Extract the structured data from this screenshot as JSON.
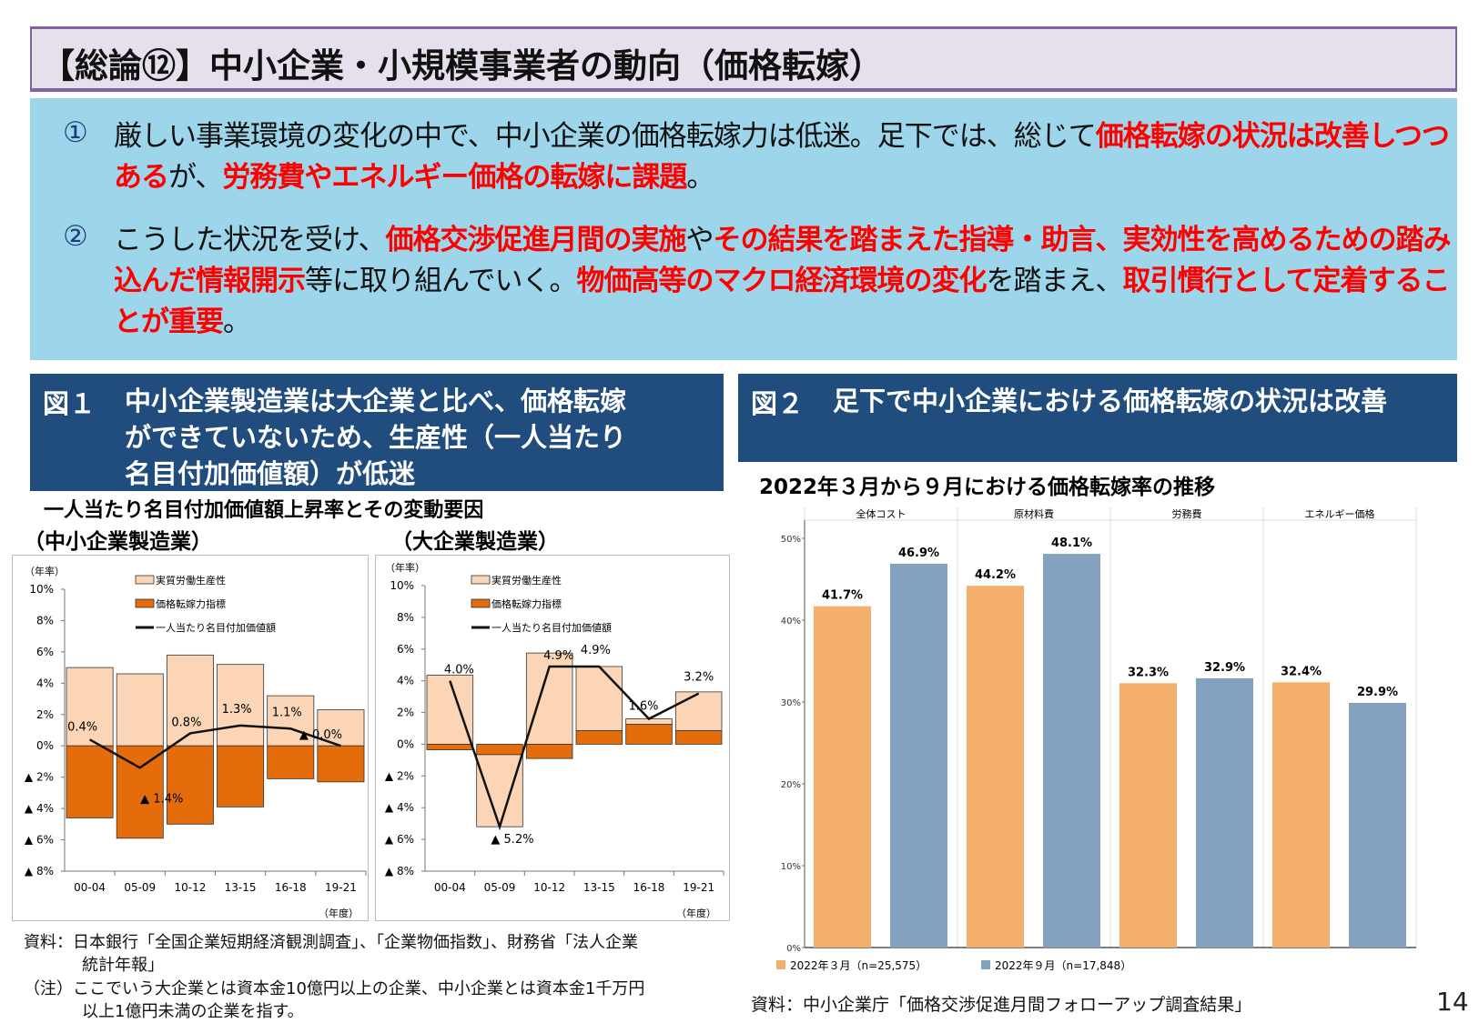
{
  "title": "【総論⑫】中小企業・小規模事業者の動向（価格転嫁）",
  "summary": {
    "items": [
      {
        "number": "①",
        "segments": [
          {
            "text": "厳しい事業環境の変化の中で、中小企業の価格転嫁力は低迷。足下では、総じて",
            "red": false
          },
          {
            "text": "価格転嫁の状況は改善しつつある",
            "red": true
          },
          {
            "text": "が、",
            "red": false
          },
          {
            "text": "労務費やエネルギー価格の転嫁に課題",
            "red": true
          },
          {
            "text": "。",
            "red": false
          }
        ]
      },
      {
        "number": "②",
        "segments": [
          {
            "text": "こうした状況を受け、",
            "red": false
          },
          {
            "text": "価格交渉促進月間の実施",
            "red": true
          },
          {
            "text": "や",
            "red": false
          },
          {
            "text": "その結果を踏まえた指導・助言、実効性を高めるための踏み込んだ情報開示",
            "red": true
          },
          {
            "text": "等に取り組んでいく。",
            "red": false
          },
          {
            "text": "物価高等のマクロ経済環境の変化",
            "red": true
          },
          {
            "text": "を踏まえ、",
            "red": false
          },
          {
            "text": "取引慣行として定着することが重要",
            "red": true
          },
          {
            "text": "。",
            "red": false
          }
        ]
      }
    ]
  },
  "figure1": {
    "label": "図１",
    "heading_lines": [
      "中小企業製造業は大企業と比べ、価格転嫁",
      "ができていないため、生産性（一人当たり",
      "名目付加価値額）が低迷"
    ],
    "subtitle": "一人当たり名目付加価値額上昇率とその変動要因",
    "panel_titles": [
      "（中小企業製造業）",
      "（大企業製造業）"
    ]
  },
  "figure2": {
    "label": "図２",
    "heading": "足下で中小企業における価格転嫁の状況は改善",
    "subtitle": "2022年３月から９月における価格転嫁率の推移"
  },
  "chart_data": [
    {
      "type": "bar",
      "stacked": true,
      "title": "（中小企業製造業）",
      "ylabel": "（年率）",
      "xlabel": "（年度）",
      "ylim": [
        -8,
        10
      ],
      "yticks": [
        10,
        8,
        6,
        4,
        2,
        0,
        -2,
        -4,
        -6,
        -8
      ],
      "ytick_labels": [
        "10%",
        "8%",
        "6%",
        "4%",
        "2%",
        "0%",
        "▲ 2%",
        "▲ 4%",
        "▲ 6%",
        "▲ 8%"
      ],
      "categories": [
        "00-04",
        "05-09",
        "10-12",
        "13-15",
        "16-18",
        "19-21"
      ],
      "series": [
        {
          "name": "実質労働生産性",
          "kind": "bar",
          "color": "#FBD5B5",
          "values": [
            5.0,
            4.6,
            5.8,
            5.2,
            3.2,
            2.3
          ]
        },
        {
          "name": "価格転嫁力指標",
          "kind": "bar",
          "color": "#E46C0A",
          "values": [
            -4.6,
            -5.9,
            -5.0,
            -3.9,
            -2.1,
            -2.3
          ]
        },
        {
          "name": "一人当たり名目付加価値額",
          "kind": "line",
          "color": "#111111",
          "values": [
            0.4,
            -1.4,
            0.8,
            1.3,
            1.1,
            0.0
          ],
          "labels": [
            "0.4%",
            "▲ 1.4%",
            "0.8%",
            "1.3%",
            "1.1%",
            "▲ 0.0%"
          ]
        }
      ],
      "legend": "top"
    },
    {
      "type": "bar",
      "stacked": true,
      "title": "（大企業製造業）",
      "ylabel": "（年率）",
      "xlabel": "（年度）",
      "ylim": [
        -8,
        10
      ],
      "yticks": [
        10,
        8,
        6,
        4,
        2,
        0,
        -2,
        -4,
        -6,
        -8
      ],
      "ytick_labels": [
        "10%",
        "8%",
        "6%",
        "4%",
        "2%",
        "0%",
        "▲ 2%",
        "▲ 4%",
        "▲ 6%",
        "▲ 8%"
      ],
      "categories": [
        "00-04",
        "05-09",
        "10-12",
        "13-15",
        "16-18",
        "19-21"
      ],
      "series": [
        {
          "name": "実質労働生産性",
          "kind": "bar",
          "color": "#FBD5B5",
          "values": [
            4.35,
            -4.55,
            5.75,
            4.05,
            0.35,
            2.45
          ]
        },
        {
          "name": "価格転嫁力指標",
          "kind": "bar",
          "color": "#E46C0A",
          "values": [
            -0.35,
            -0.65,
            -0.9,
            0.85,
            1.25,
            0.85
          ]
        },
        {
          "name": "一人当たり名目付加価値額",
          "kind": "line",
          "color": "#111111",
          "values": [
            4.0,
            -5.2,
            4.9,
            4.9,
            1.6,
            3.2
          ],
          "labels": [
            "4.0%",
            "▲ 5.2%",
            "4.9%",
            "4.9%",
            "1.6%",
            "3.2%"
          ]
        }
      ],
      "legend": "top"
    },
    {
      "type": "bar",
      "title": "2022年３月から９月における価格転嫁率の推移",
      "ylim": [
        0,
        50
      ],
      "yticks": [
        0,
        10,
        20,
        30,
        40,
        50
      ],
      "ytick_labels": [
        "0%",
        "10%",
        "20%",
        "30%",
        "40%",
        "50%"
      ],
      "categories": [
        "全体コスト",
        "原材料費",
        "労務費",
        "エネルギー価格"
      ],
      "series": [
        {
          "name": "2022年３月（n=25,575）",
          "color": "#F4AF6C",
          "values": [
            41.7,
            44.2,
            32.3,
            32.4
          ],
          "labels": [
            "41.7%",
            "44.2%",
            "32.3%",
            "32.4%"
          ]
        },
        {
          "name": "2022年９月（n=17,848）",
          "color": "#84A2C0",
          "values": [
            46.9,
            48.1,
            32.9,
            29.9
          ],
          "labels": [
            "46.9%",
            "48.1%",
            "32.9%",
            "29.9%"
          ]
        }
      ],
      "legend": "bottom-left"
    }
  ],
  "notes": {
    "source1_line1": "資料：日本銀行「全国企業短期経済観測調査」、「企業物価指数」、財務省「法人企業",
    "source1_line2": "統計年報」",
    "note_line1": "（注）ここでいう大企業とは資本金10億円以上の企業、中小企業とは資本金1千万円",
    "note_line2": "以上1億円未満の企業を指す。",
    "source2": "資料：中小企業庁「価格交渉促進月間フォローアップ調査結果」"
  },
  "page_number": "14"
}
